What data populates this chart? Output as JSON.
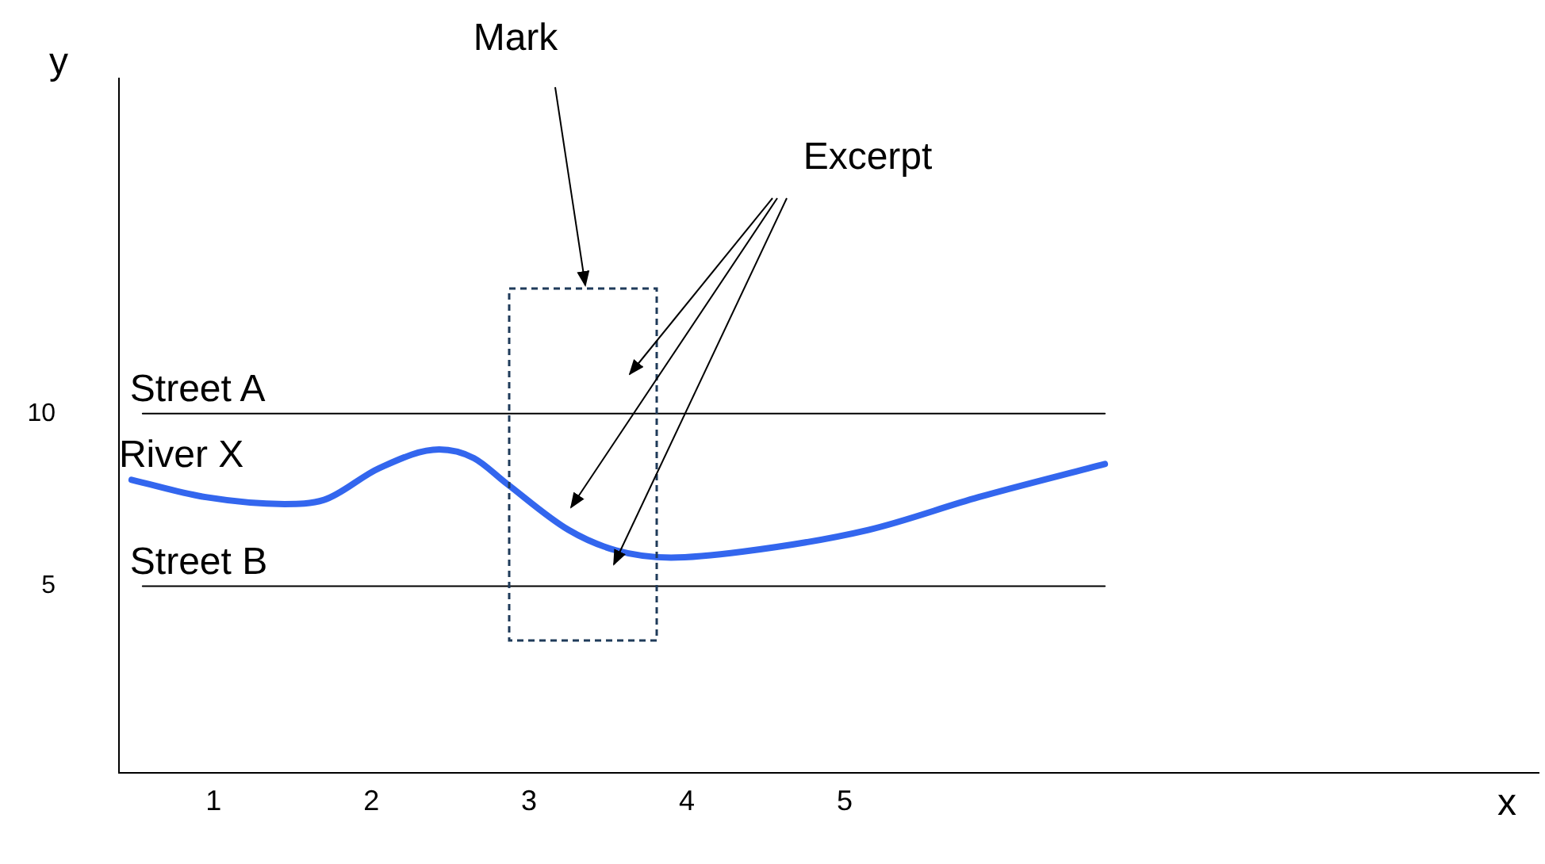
{
  "chart_data": {
    "type": "line",
    "xlabel": "x",
    "ylabel": "y",
    "xlim": [
      0.4,
      9.4
    ],
    "ylim": [
      -0.4,
      19.7
    ],
    "xticks": [
      1,
      2,
      3,
      4,
      5
    ],
    "yticks": [
      5,
      10
    ],
    "grid": false,
    "legend": false,
    "marker": "none",
    "line_style": "solid",
    "series": [
      {
        "name": "Street A",
        "color": "#000000",
        "x": [
          0.55,
          6.65
        ],
        "values": [
          10,
          10
        ]
      },
      {
        "name": "River X",
        "color": "#3366ee",
        "x": [
          0.48,
          0.95,
          1.45,
          1.7,
          2.05,
          2.43,
          2.65,
          2.85,
          3.25,
          3.55,
          3.9,
          4.35,
          5.15,
          5.85,
          6.65
        ],
        "values": [
          8.08,
          7.58,
          7.38,
          7.5,
          8.42,
          8.96,
          8.71,
          8.0,
          6.63,
          6.04,
          5.83,
          6.0,
          6.63,
          7.58,
          8.54
        ]
      },
      {
        "name": "Street B",
        "color": "#000000",
        "x": [
          0.55,
          6.65
        ],
        "values": [
          5,
          5
        ]
      }
    ],
    "annotations": [
      "Mark",
      "Excerpt"
    ]
  }
}
